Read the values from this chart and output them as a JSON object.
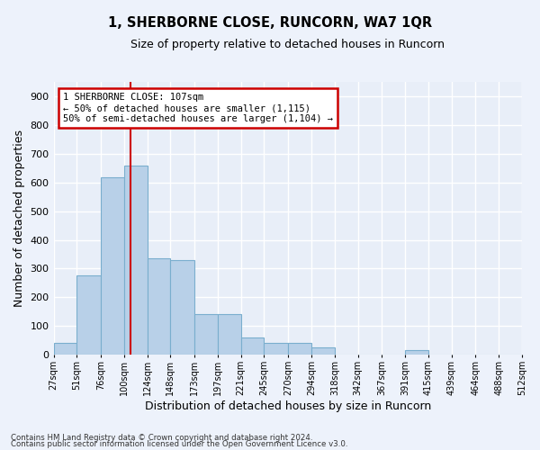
{
  "title": "1, SHERBORNE CLOSE, RUNCORN, WA7 1QR",
  "subtitle": "Size of property relative to detached houses in Runcorn",
  "xlabel": "Distribution of detached houses by size in Runcorn",
  "ylabel": "Number of detached properties",
  "bar_color": "#b8d0e8",
  "bar_edge_color": "#7aaece",
  "background_color": "#e8eef8",
  "grid_color": "#ffffff",
  "bins": [
    27,
    51,
    76,
    100,
    124,
    148,
    173,
    197,
    221,
    245,
    270,
    294,
    318,
    342,
    367,
    391,
    415,
    439,
    464,
    488,
    512
  ],
  "bin_labels": [
    "27sqm",
    "51sqm",
    "76sqm",
    "100sqm",
    "124sqm",
    "148sqm",
    "173sqm",
    "197sqm",
    "221sqm",
    "245sqm",
    "270sqm",
    "294sqm",
    "318sqm",
    "342sqm",
    "367sqm",
    "391sqm",
    "415sqm",
    "439sqm",
    "464sqm",
    "488sqm",
    "512sqm"
  ],
  "values": [
    40,
    275,
    620,
    660,
    335,
    330,
    140,
    140,
    60,
    40,
    40,
    25,
    0,
    0,
    0,
    15,
    0,
    0,
    0,
    0
  ],
  "ylim": [
    0,
    950
  ],
  "yticks": [
    0,
    100,
    200,
    300,
    400,
    500,
    600,
    700,
    800,
    900
  ],
  "property_size": 107,
  "vline_color": "#cc0000",
  "annotation_text": "1 SHERBORNE CLOSE: 107sqm\n← 50% of detached houses are smaller (1,115)\n50% of semi-detached houses are larger (1,104) →",
  "annotation_box_color": "#ffffff",
  "annotation_box_edge_color": "#cc0000",
  "footnote1": "Contains HM Land Registry data © Crown copyright and database right 2024.",
  "footnote2": "Contains public sector information licensed under the Open Government Licence v3.0.",
  "fig_bg_color": "#edf2fb"
}
